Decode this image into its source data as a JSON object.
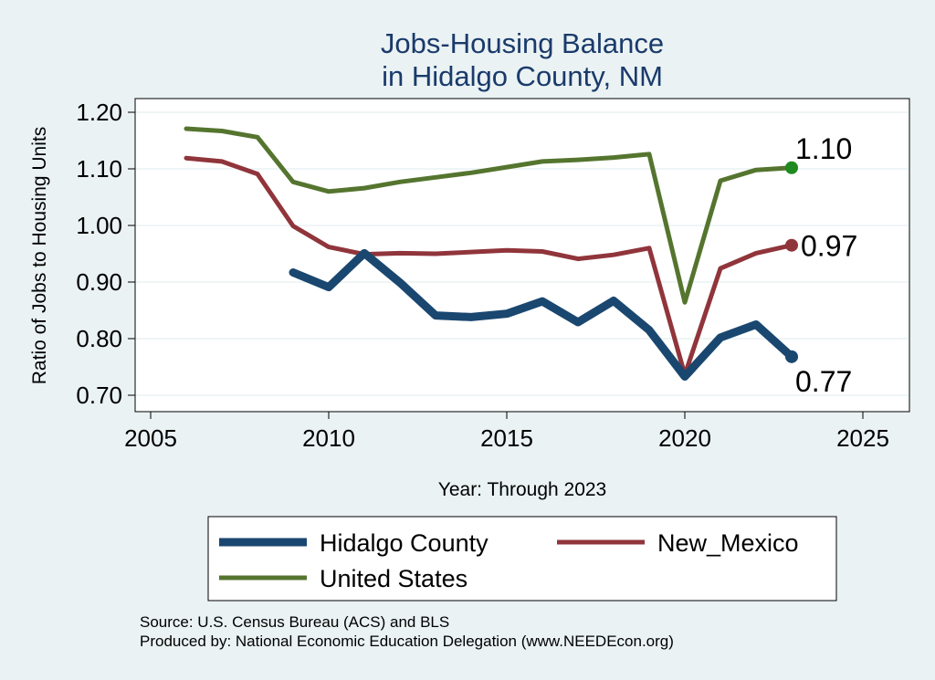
{
  "chart_data": {
    "type": "line",
    "title": [
      "Jobs-Housing Balance",
      "in Hidalgo County, NM"
    ],
    "xlabel": "Year: Through 2023",
    "ylabel": "Ratio of Jobs to Housing Units",
    "xlim": [
      2005,
      2025
    ],
    "ylim": [
      0.7,
      1.2
    ],
    "x_ticks": [
      2005,
      2010,
      2015,
      2020,
      2025
    ],
    "y_ticks": [
      0.7,
      0.8,
      0.9,
      1.0,
      1.1,
      1.2
    ],
    "y_tick_labels": [
      "0.70",
      "0.80",
      "0.90",
      "1.00",
      "1.10",
      "1.20"
    ],
    "grid": "horizontal",
    "legend_position": "bottom",
    "series": [
      {
        "name": "Hidalgo County",
        "color": "#1a476f",
        "x": [
          2009,
          2010,
          2011,
          2012,
          2013,
          2014,
          2015,
          2016,
          2017,
          2018,
          2019,
          2020,
          2021,
          2022,
          2023
        ],
        "values": [
          0.917,
          0.891,
          0.951,
          0.899,
          0.841,
          0.838,
          0.844,
          0.866,
          0.829,
          0.867,
          0.815,
          0.733,
          0.802,
          0.825,
          0.768
        ],
        "end_label": "0.77"
      },
      {
        "name": "New_Mexico",
        "color": "#90353b",
        "x": [
          2006,
          2007,
          2008,
          2009,
          2010,
          2011,
          2012,
          2013,
          2014,
          2015,
          2016,
          2017,
          2018,
          2019,
          2020,
          2021,
          2022,
          2023
        ],
        "values": [
          1.119,
          1.113,
          1.091,
          0.999,
          0.962,
          0.949,
          0.951,
          0.95,
          0.953,
          0.956,
          0.954,
          0.941,
          0.948,
          0.96,
          0.736,
          0.924,
          0.951,
          0.965
        ],
        "end_label": "0.97"
      },
      {
        "name": "United States",
        "color": "#55752f",
        "x": [
          2006,
          2007,
          2008,
          2009,
          2010,
          2011,
          2012,
          2013,
          2014,
          2015,
          2016,
          2017,
          2018,
          2019,
          2020,
          2021,
          2022,
          2023
        ],
        "values": [
          1.171,
          1.167,
          1.156,
          1.077,
          1.06,
          1.066,
          1.077,
          1.085,
          1.093,
          1.103,
          1.113,
          1.116,
          1.12,
          1.126,
          0.864,
          1.079,
          1.098,
          1.102
        ],
        "end_label": "1.10"
      }
    ]
  },
  "legend": {
    "items": [
      {
        "label": "Hidalgo County",
        "color": "#1a476f"
      },
      {
        "label": "New_Mexico",
        "color": "#90353b"
      },
      {
        "label": "United States",
        "color": "#55752f"
      }
    ]
  },
  "notes": {
    "source": "Source: U.S. Census Bureau (ACS) and BLS",
    "produced_by": "Produced by: National Economic Education Delegation (www.NEEDEcon.org)"
  },
  "colors": {
    "background": "#eaf2f3",
    "plot_background": "#ffffff",
    "grid": "#eaf2f3",
    "title": "#1a3a6b",
    "hidalgo_end_marker": "#1a476f",
    "new_mexico_end_marker": "#90353b",
    "us_end_marker": "#1f8a1f"
  }
}
